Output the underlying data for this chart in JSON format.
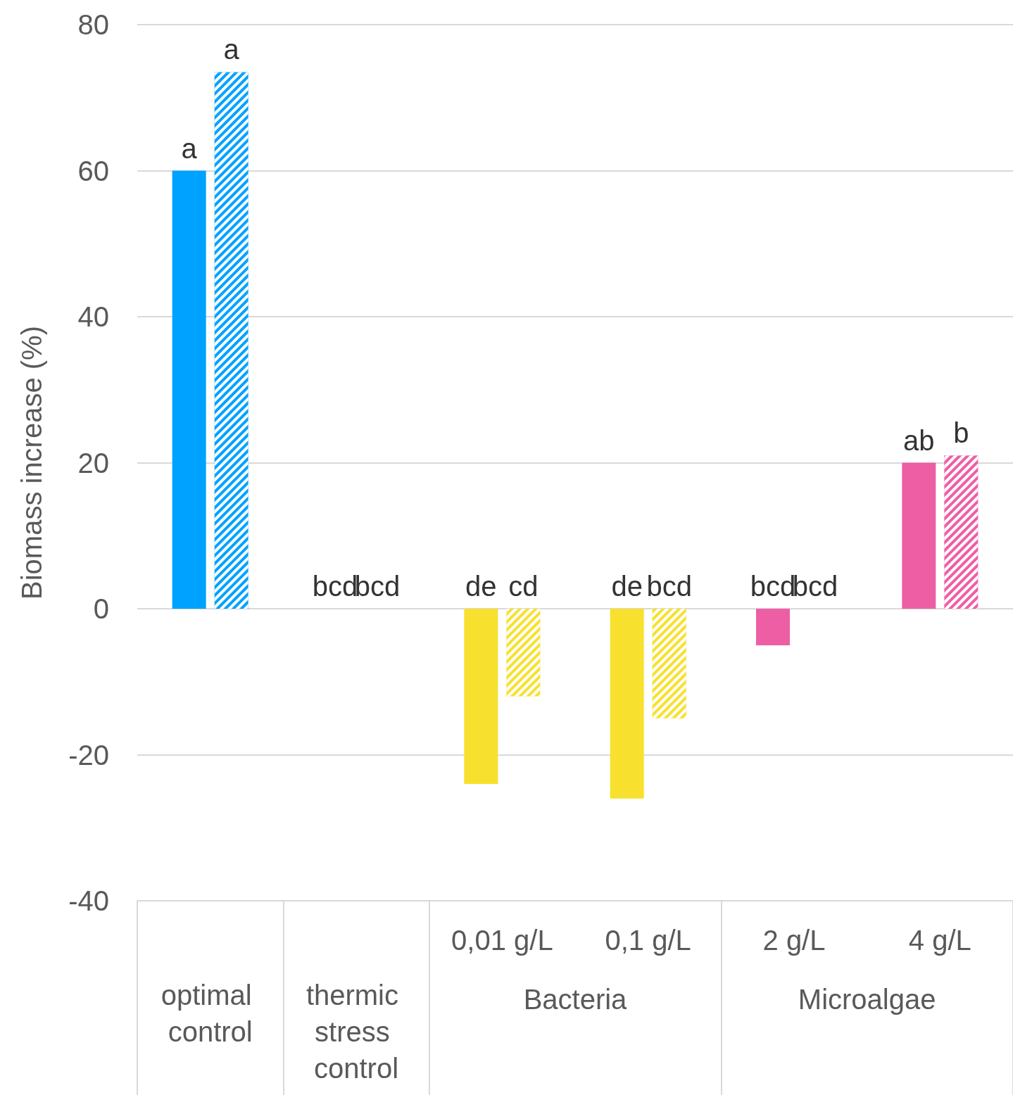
{
  "chart_data": {
    "type": "bar",
    "ylabel": "Biomass increase (%)",
    "categories": [
      "optimal control",
      "thermic stress control",
      "0,01 g/L",
      "0,1 g/L",
      "2 g/L",
      "4 g/L"
    ],
    "annotations": [
      "Bacteria",
      "Microalgae"
    ],
    "series": [
      {
        "colors": [
          "#00a2ff",
          "#00a2ff",
          "#f7e12e",
          "#f7e12e",
          "#ee5ea5",
          "#ee5ea5"
        ],
        "values": [
          60,
          0,
          -24,
          -26,
          -5,
          20
        ],
        "value_labels": [
          "a",
          "bcd",
          "de",
          "de",
          "bcd",
          "ab"
        ]
      },
      {
        "colors": [
          "#00a2ff",
          "#00a2ff",
          "#f7e12e",
          "#f7e12e",
          "#ee5ea5",
          "#ee5ea5"
        ],
        "values": [
          73.5,
          0,
          -12,
          -15,
          0,
          21
        ],
        "value_labels": [
          "a",
          "bcd",
          "cd",
          "bcd",
          "bcd",
          "b"
        ]
      }
    ],
    "ylim": [
      -40,
      80
    ],
    "yticks": [
      -40,
      -20,
      0,
      20,
      40,
      60,
      80
    ],
    "grid": "y"
  }
}
